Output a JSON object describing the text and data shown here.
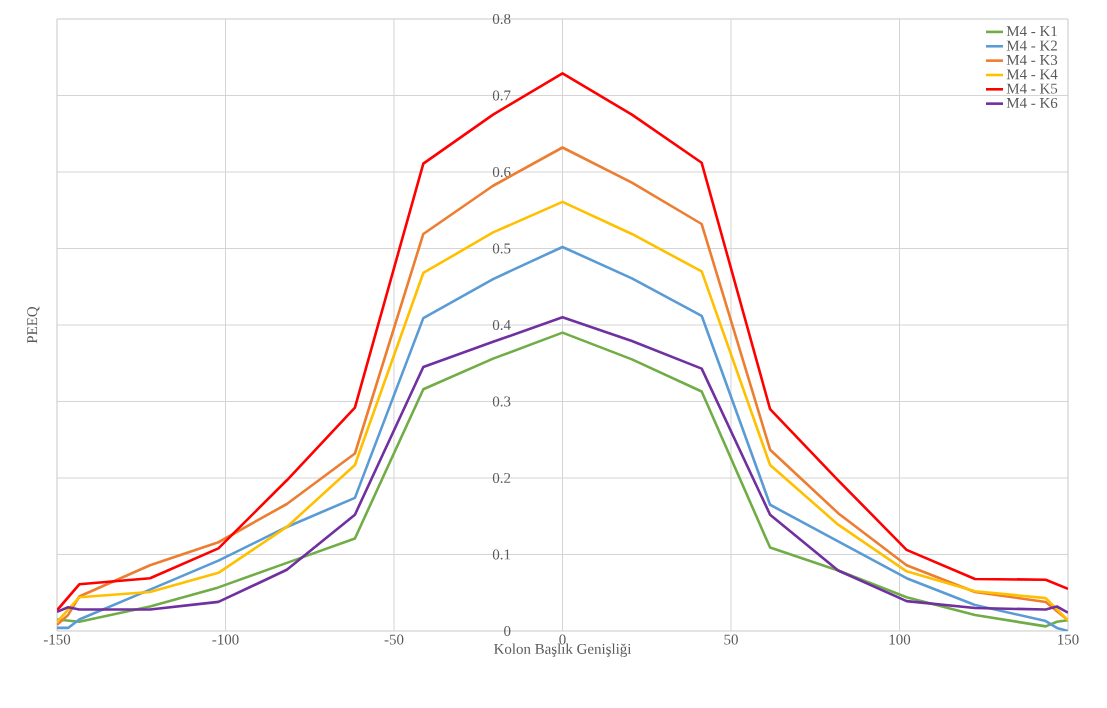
{
  "chart_data": {
    "type": "line",
    "xlabel": "Kolon Başlık Genişliği",
    "ylabel": "PEEQ",
    "xlim": [
      -150,
      150
    ],
    "ylim": [
      0,
      0.8
    ],
    "xticks": [
      -150,
      -100,
      -50,
      0,
      50,
      100,
      150
    ],
    "yticks": [
      0,
      0.1,
      0.2,
      0.3,
      0.4,
      0.5,
      0.6,
      0.7,
      0.8
    ],
    "grid": true,
    "legend": "top right",
    "marker": "none",
    "line_style": "solid",
    "series": [
      {
        "name": "M4 - K1",
        "color": "#70ad47",
        "x": [
          -150,
          -143.4,
          -122.4,
          -102.1,
          -81.8,
          -61.6,
          -41.3,
          -20.6,
          0,
          20.6,
          41.3,
          61.6,
          81.8,
          102.1,
          122.4,
          143.4,
          146.7,
          150
        ],
        "values": [
          0.015,
          0.012,
          0.032,
          0.057,
          0.089,
          0.121,
          0.316,
          0.356,
          0.39,
          0.355,
          0.313,
          0.109,
          0.079,
          0.044,
          0.021,
          0.006,
          0.012,
          0.014
        ]
      },
      {
        "name": "M4 - K2",
        "color": "#5b9bd5",
        "x": [
          -150,
          -146.7,
          -143.4,
          -122.4,
          -102.1,
          -81.8,
          -61.6,
          -41.3,
          -20.6,
          0,
          20.6,
          41.3,
          61.6,
          81.8,
          102.1,
          122.4,
          143.4,
          146.7,
          150
        ],
        "values": [
          0.004,
          0.004,
          0.015,
          0.054,
          0.092,
          0.136,
          0.174,
          0.409,
          0.46,
          0.502,
          0.461,
          0.412,
          0.165,
          0.117,
          0.069,
          0.034,
          0.013,
          0.004,
          0.0
        ]
      },
      {
        "name": "M4 - K3",
        "color": "#ed7d31",
        "x": [
          -150,
          -146.7,
          -143.4,
          -122.4,
          -102.1,
          -81.8,
          -61.6,
          -41.3,
          -20.6,
          0,
          20.6,
          41.3,
          61.6,
          81.8,
          102.1,
          122.4,
          143.4,
          150
        ],
        "values": [
          0.008,
          0.021,
          0.045,
          0.086,
          0.116,
          0.166,
          0.232,
          0.519,
          0.582,
          0.632,
          0.586,
          0.532,
          0.237,
          0.154,
          0.086,
          0.051,
          0.038,
          0.014
        ]
      },
      {
        "name": "M4 - K4",
        "color": "#ffc000",
        "x": [
          -150,
          -143.4,
          -122.4,
          -102.1,
          -81.8,
          -61.6,
          -41.3,
          -20.6,
          0,
          20.6,
          41.3,
          61.6,
          81.8,
          102.1,
          122.4,
          143.4,
          150
        ],
        "values": [
          0.012,
          0.044,
          0.051,
          0.076,
          0.136,
          0.217,
          0.468,
          0.521,
          0.561,
          0.519,
          0.47,
          0.217,
          0.139,
          0.078,
          0.052,
          0.043,
          0.014
        ]
      },
      {
        "name": "M4 - K5",
        "color": "#ff0000",
        "x": [
          -150,
          -143.4,
          -122.4,
          -102.1,
          -81.8,
          -61.6,
          -41.3,
          -20.6,
          0,
          20.6,
          41.3,
          61.6,
          81.8,
          102.1,
          122.4,
          143.4,
          146.7,
          150
        ],
        "values": [
          0.027,
          0.061,
          0.069,
          0.108,
          0.197,
          0.292,
          0.611,
          0.675,
          0.729,
          0.675,
          0.612,
          0.29,
          0.197,
          0.106,
          0.068,
          0.067,
          0.061,
          0.055
        ]
      },
      {
        "name": "M4 - K6",
        "color": "#7030a0",
        "x": [
          -150,
          -146.7,
          -143.4,
          -122.4,
          -102.1,
          -81.8,
          -61.6,
          -41.3,
          -20.6,
          0,
          20.6,
          41.3,
          61.6,
          81.8,
          102.1,
          122.4,
          143.4,
          146.7,
          150
        ],
        "values": [
          0.025,
          0.031,
          0.028,
          0.028,
          0.038,
          0.08,
          0.152,
          0.345,
          0.378,
          0.41,
          0.379,
          0.343,
          0.152,
          0.079,
          0.039,
          0.03,
          0.028,
          0.032,
          0.024
        ]
      }
    ]
  }
}
